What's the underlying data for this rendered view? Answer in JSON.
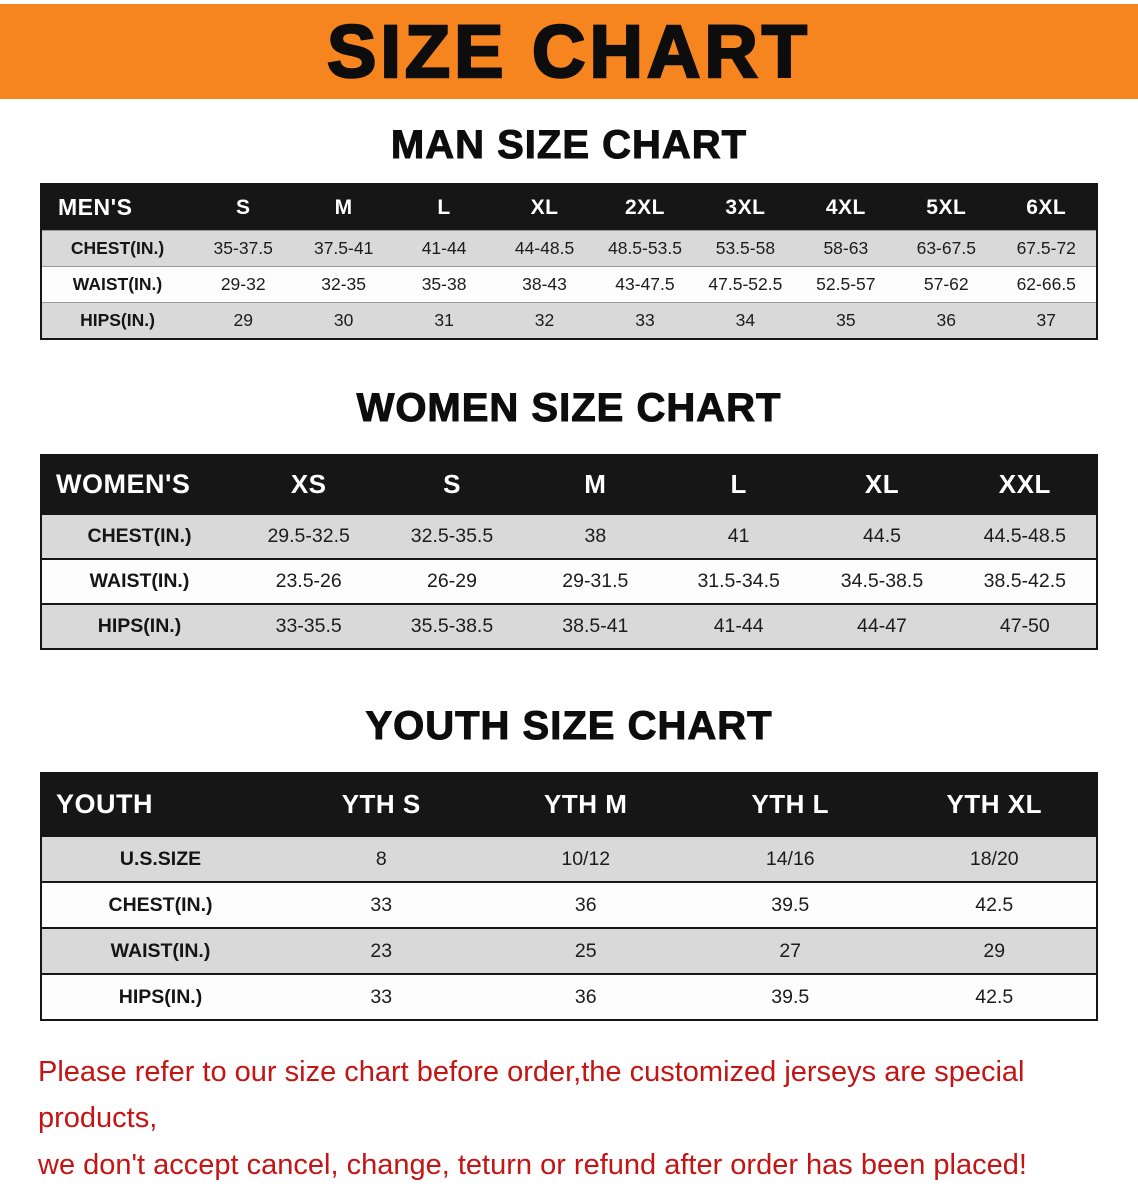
{
  "banner": {
    "title": "SIZE CHART"
  },
  "colors": {
    "banner_bg": "#f6851f",
    "table_header_bg": "#161616",
    "row_shaded": "#d9d9d9",
    "row_plain": "#fdfdfd",
    "footer_text": "#c41414"
  },
  "sections": [
    {
      "heading": "MAN SIZE CHART",
      "table": {
        "header": [
          "MEN'S",
          "S",
          "M",
          "L",
          "XL",
          "2XL",
          "3XL",
          "4XL",
          "5XL",
          "6XL"
        ],
        "rows": [
          [
            "CHEST(IN.)",
            "35-37.5",
            "37.5-41",
            "41-44",
            "44-48.5",
            "48.5-53.5",
            "53.5-58",
            "58-63",
            "63-67.5",
            "67.5-72"
          ],
          [
            "WAIST(IN.)",
            "29-32",
            "32-35",
            "35-38",
            "38-43",
            "43-47.5",
            "47.5-52.5",
            "52.5-57",
            "57-62",
            "62-66.5"
          ],
          [
            "HIPS(IN.)",
            "29",
            "30",
            "31",
            "32",
            "33",
            "34",
            "35",
            "36",
            "37"
          ]
        ]
      }
    },
    {
      "heading": "WOMEN SIZE CHART",
      "table": {
        "header": [
          "WOMEN'S",
          "XS",
          "S",
          "M",
          "L",
          "XL",
          "XXL"
        ],
        "rows": [
          [
            "CHEST(IN.)",
            "29.5-32.5",
            "32.5-35.5",
            "38",
            "41",
            "44.5",
            "44.5-48.5"
          ],
          [
            "WAIST(IN.)",
            "23.5-26",
            "26-29",
            "29-31.5",
            "31.5-34.5",
            "34.5-38.5",
            "38.5-42.5"
          ],
          [
            "HIPS(IN.)",
            "33-35.5",
            "35.5-38.5",
            "38.5-41",
            "41-44",
            "44-47",
            "47-50"
          ]
        ]
      }
    },
    {
      "heading": "YOUTH SIZE CHART",
      "table": {
        "header": [
          "YOUTH",
          "YTH S",
          "YTH M",
          "YTH L",
          "YTH XL"
        ],
        "rows": [
          [
            "U.S.SIZE",
            "8",
            "10/12",
            "14/16",
            "18/20"
          ],
          [
            "CHEST(IN.)",
            "33",
            "36",
            "39.5",
            "42.5"
          ],
          [
            "WAIST(IN.)",
            "23",
            "25",
            "27",
            "29"
          ],
          [
            "HIPS(IN.)",
            "33",
            "36",
            "39.5",
            "42.5"
          ]
        ]
      }
    }
  ],
  "footer": {
    "lines": [
      "Please refer to our size chart before order,the customized jerseys are special products,",
      "we don't accept cancel, change, teturn or refund after order has been placed!"
    ]
  }
}
